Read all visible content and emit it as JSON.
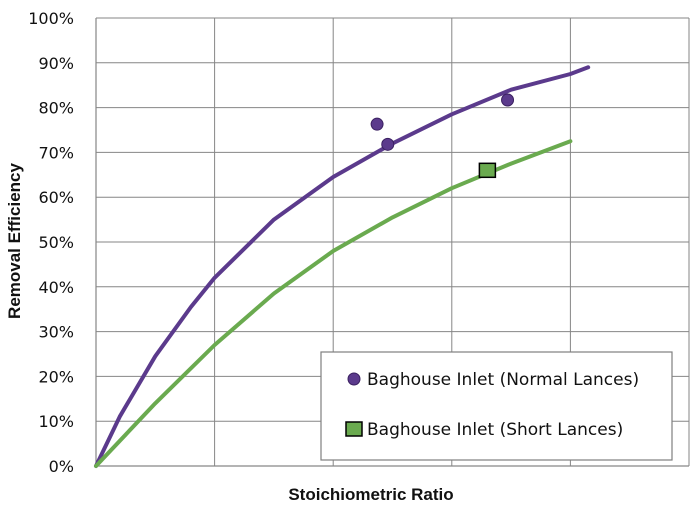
{
  "chart_data": {
    "type": "scatter",
    "title": "",
    "xlabel": "Stoichiometric Ratio",
    "ylabel": "Removal Efficiency",
    "xlim": [
      0,
      5
    ],
    "ylim": [
      0,
      100
    ],
    "x_tick_labels_shown": false,
    "y_ticks": [
      "0%",
      "10%",
      "20%",
      "30%",
      "40%",
      "50%",
      "60%",
      "70%",
      "80%",
      "90%",
      "100%"
    ],
    "grid": true,
    "legend_position": "bottom-right",
    "colors": {
      "normal": "#5b3a8c",
      "short": "#6aaa4f"
    },
    "series": [
      {
        "name": "Baghouse Inlet (Normal Lances)",
        "marker": "circle",
        "points": [
          [
            2.37,
            76.3
          ],
          [
            2.46,
            71.8
          ],
          [
            3.47,
            81.7
          ]
        ]
      },
      {
        "name": "Baghouse Inlet (Short Lances)",
        "marker": "square",
        "points": [
          [
            3.3,
            66.0
          ]
        ]
      }
    ],
    "curves": [
      {
        "color_key": "normal",
        "points": [
          [
            0,
            0
          ],
          [
            0.2,
            11
          ],
          [
            0.5,
            24.5
          ],
          [
            0.8,
            35.5
          ],
          [
            1.0,
            42
          ],
          [
            1.5,
            55
          ],
          [
            2.0,
            64.5
          ],
          [
            2.5,
            72
          ],
          [
            3.0,
            78.5
          ],
          [
            3.5,
            84
          ],
          [
            4.0,
            87.5
          ],
          [
            4.15,
            89
          ]
        ]
      },
      {
        "color_key": "short",
        "points": [
          [
            0,
            0
          ],
          [
            0.5,
            14
          ],
          [
            1.0,
            27
          ],
          [
            1.5,
            38.5
          ],
          [
            2.0,
            48
          ],
          [
            2.5,
            55.5
          ],
          [
            3.0,
            62
          ],
          [
            3.5,
            67.5
          ],
          [
            4.0,
            72.5
          ]
        ]
      }
    ]
  }
}
